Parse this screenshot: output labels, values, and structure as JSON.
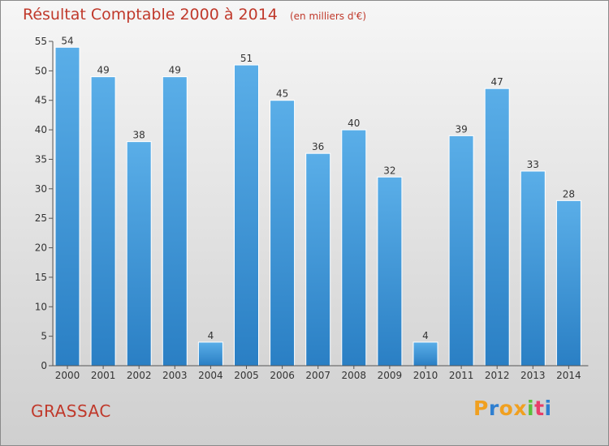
{
  "header": {
    "title": "Résultat Comptable 2000 à 2014",
    "subtitle": "(en milliers d'€)"
  },
  "footer": {
    "commune": "GRASSAC",
    "logo_text": "Proxiti"
  },
  "colors": {
    "title": "#c0392b",
    "bar_top": "#5aaee8",
    "bar_bottom": "#2a7fc4",
    "logo_letters": [
      "#f0a020",
      "#2f7fd0",
      "#f0a020",
      "#f0a020",
      "#5bbf3a",
      "#e83e6a",
      "#2f7fd0"
    ]
  },
  "chart_data": {
    "type": "bar",
    "title": "Résultat Comptable 2000 à 2014",
    "subtitle": "(en milliers d'€)",
    "xlabel": "",
    "ylabel": "",
    "categories": [
      "2000",
      "2001",
      "2002",
      "2003",
      "2004",
      "2005",
      "2006",
      "2007",
      "2008",
      "2009",
      "2010",
      "2011",
      "2012",
      "2013",
      "2014"
    ],
    "values": [
      54,
      49,
      38,
      49,
      4,
      51,
      45,
      36,
      40,
      32,
      4,
      39,
      47,
      33,
      28
    ],
    "ylim": [
      0,
      55
    ],
    "yticks": [
      0,
      5,
      10,
      15,
      20,
      25,
      30,
      35,
      40,
      45,
      50,
      55
    ],
    "grid": false,
    "legend": "none"
  }
}
